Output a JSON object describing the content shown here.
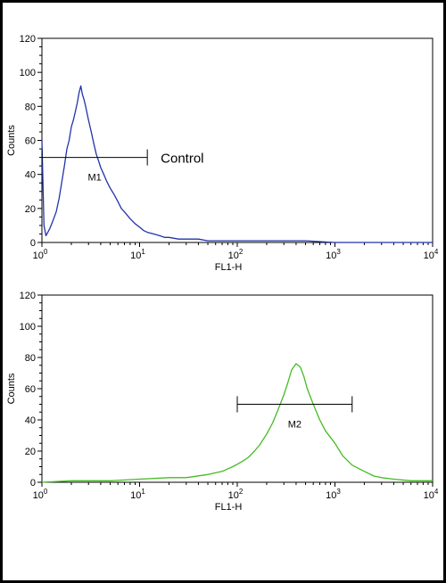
{
  "chart_data": [
    {
      "type": "line",
      "name": "top-histogram",
      "xlabel": "FL1-H",
      "ylabel": "Counts",
      "xscale": "log",
      "xlim": [
        1,
        10000
      ],
      "ylim": [
        0,
        120
      ],
      "x_ticks": [
        1,
        10,
        100,
        1000,
        10000
      ],
      "x_tick_labels": [
        {
          "base": "10",
          "exp": "0"
        },
        {
          "base": "10",
          "exp": "1"
        },
        {
          "base": "10",
          "exp": "2"
        },
        {
          "base": "10",
          "exp": "3"
        },
        {
          "base": "10",
          "exp": "4"
        }
      ],
      "y_ticks": [
        0,
        20,
        40,
        60,
        80,
        100,
        120
      ],
      "color": "#2233aa",
      "series": [
        {
          "x": [
            1,
            1.05,
            1.1,
            1.2,
            1.3,
            1.4,
            1.5,
            1.6,
            1.7,
            1.8,
            1.9,
            2.0,
            2.1,
            2.2,
            2.3,
            2.4,
            2.5,
            2.6,
            2.7,
            2.8,
            2.9,
            3.0,
            3.2,
            3.4,
            3.6,
            3.8,
            4.0,
            4.3,
            4.6,
            5.0,
            5.5,
            6.0,
            6.5,
            7.0,
            8.0,
            9.0,
            10,
            11,
            12,
            14,
            16,
            18,
            20,
            25,
            30,
            40,
            50,
            70,
            100,
            150,
            200,
            300,
            500,
            1000,
            2000,
            5000,
            10000
          ],
          "y": [
            60,
            10,
            4,
            8,
            13,
            18,
            26,
            36,
            45,
            55,
            60,
            68,
            72,
            77,
            82,
            88,
            92,
            87,
            84,
            80,
            76,
            72,
            65,
            58,
            52,
            48,
            44,
            40,
            36,
            32,
            28,
            24,
            20,
            18,
            14,
            11,
            9,
            7,
            6,
            5,
            4,
            3,
            3,
            2,
            2,
            2,
            1,
            1,
            1,
            1,
            1,
            1,
            1,
            0,
            0,
            0,
            0
          ]
        }
      ],
      "marker": {
        "label": "M1",
        "x_start": 1,
        "x_end": 12,
        "y": 50
      },
      "annotation": "Control"
    },
    {
      "type": "line",
      "name": "bottom-histogram",
      "xlabel": "FL1-H",
      "ylabel": "Counts",
      "xscale": "log",
      "xlim": [
        1,
        10000
      ],
      "ylim": [
        0,
        120
      ],
      "x_ticks": [
        1,
        10,
        100,
        1000,
        10000
      ],
      "x_tick_labels": [
        {
          "base": "10",
          "exp": "0"
        },
        {
          "base": "10",
          "exp": "1"
        },
        {
          "base": "10",
          "exp": "2"
        },
        {
          "base": "10",
          "exp": "3"
        },
        {
          "base": "10",
          "exp": "4"
        }
      ],
      "y_ticks": [
        0,
        20,
        40,
        60,
        80,
        100,
        120
      ],
      "color": "#44bb22",
      "series": [
        {
          "x": [
            1,
            2,
            5,
            10,
            20,
            30,
            50,
            70,
            90,
            110,
            130,
            150,
            170,
            200,
            230,
            260,
            300,
            330,
            360,
            400,
            440,
            480,
            520,
            600,
            700,
            800,
            1000,
            1200,
            1500,
            2000,
            2500,
            3000,
            4000,
            6000,
            10000
          ],
          "y": [
            0,
            1,
            1,
            2,
            3,
            3,
            5,
            7,
            10,
            13,
            16,
            20,
            24,
            31,
            38,
            46,
            56,
            64,
            72,
            76,
            74,
            68,
            60,
            50,
            40,
            33,
            25,
            17,
            11,
            7,
            4,
            3,
            2,
            1,
            1
          ]
        }
      ],
      "marker": {
        "label": "M2",
        "x_start": 100,
        "x_end": 1500,
        "y": 50
      }
    }
  ]
}
